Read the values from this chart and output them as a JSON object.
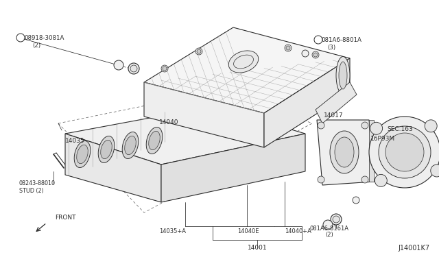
{
  "title": "",
  "bg_color": "#ffffff",
  "line_color": "#2a2a2a",
  "diagram_id": "J14001K7",
  "labels": {
    "part_top_left_num": "08918-3081A",
    "part_top_left_sub": "(2)",
    "part_top_right_num": "081A6-8801A",
    "part_top_right_sub": "(3)",
    "label_14040": "14040",
    "label_14035": "14035",
    "label_14017": "14017",
    "label_16293M": "16P93M",
    "label_sec163": "SEC.163",
    "label_stud": "08243-88010",
    "label_stud2": "STUD (2)",
    "label_14035A": "14035+A",
    "label_14040E": "14040E",
    "label_14040A": "14040+A",
    "label_14001": "14001",
    "label_bolt_bot_num": "081A6-8161A",
    "label_bolt_bot_sub": "(2)",
    "label_front": "FRONT"
  }
}
